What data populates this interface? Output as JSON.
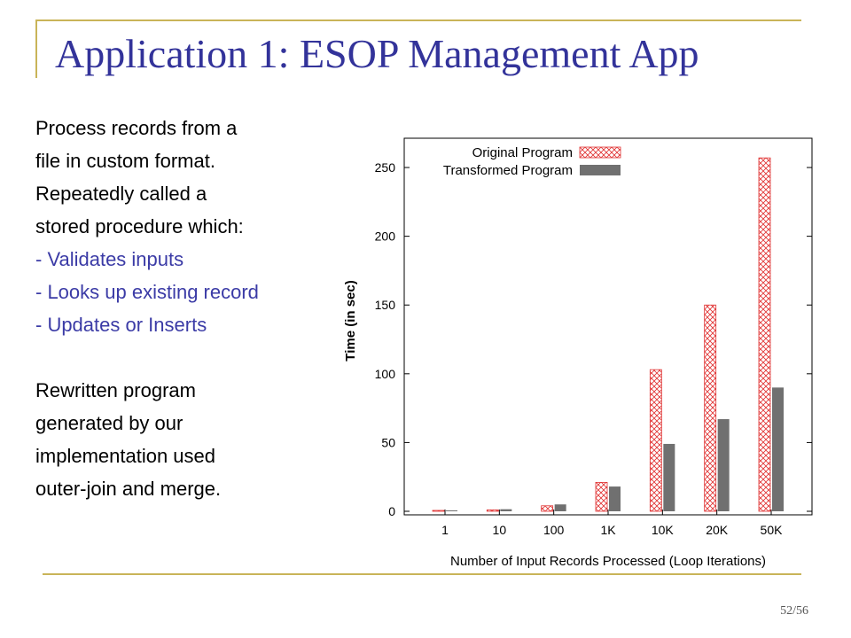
{
  "slide": {
    "title": "Application 1: ESOP Management App",
    "page_number": "52/56",
    "body_lines": [
      "Process records from a",
      "file in custom format.",
      "Repeatedly called a",
      "stored procedure which:"
    ],
    "bullets": [
      " - Validates inputs",
      " - Looks up existing record",
      " - Updates or Inserts"
    ],
    "closing_lines": [
      "Rewritten program",
      "generated by our",
      "implementation used",
      "outer-join and merge."
    ],
    "accent_color": "#c9b458",
    "title_color": "#33339a",
    "bullet_color": "#3b3ba6"
  },
  "chart_data": {
    "type": "bar",
    "categories": [
      "1",
      "10",
      "100",
      "1K",
      "10K",
      "20K",
      "50K"
    ],
    "series": [
      {
        "name": "Original Program",
        "values": [
          0.5,
          1,
          4,
          21,
          103,
          150,
          257
        ],
        "color": "#e03030",
        "pattern": "crosshatch"
      },
      {
        "name": "Transformed Program",
        "values": [
          0.5,
          1.5,
          5,
          18,
          49,
          67,
          90
        ],
        "color": "#707070",
        "pattern": "solid"
      }
    ],
    "title": "",
    "xlabel": "Number of Input Records Processed (Loop Iterations)",
    "ylabel": "Time (in sec)",
    "ylim": [
      0,
      270
    ],
    "yticks": [
      0,
      50,
      100,
      150,
      200,
      250
    ],
    "grid": false,
    "legend": "top-right"
  }
}
